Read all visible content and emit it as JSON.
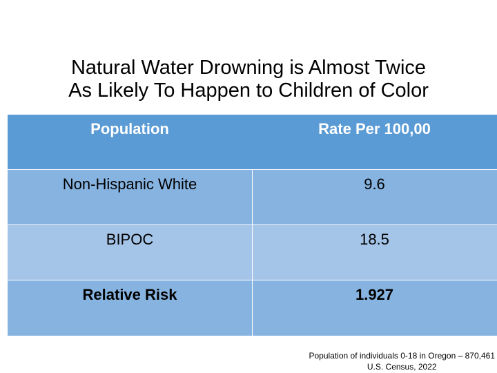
{
  "title": {
    "line1": "Natural Water Drowning is Almost Twice",
    "line2": "As Likely To Happen to Children of Color"
  },
  "table": {
    "headers": [
      "Population",
      "Rate Per 100,00"
    ],
    "rows": [
      [
        "Non-Hispanic White",
        "9.6"
      ],
      [
        "BIPOC",
        "18.5"
      ],
      [
        "Relative Risk",
        "1.927"
      ]
    ]
  },
  "footnote": {
    "line1": "Population of individuals 0-18 in Oregon – 870,461",
    "line2": "U.S. Census, 2022"
  },
  "colors": {
    "header": "#5b9bd5",
    "row_odd": "#87b3e0",
    "row_even": "#a4c4e8"
  }
}
